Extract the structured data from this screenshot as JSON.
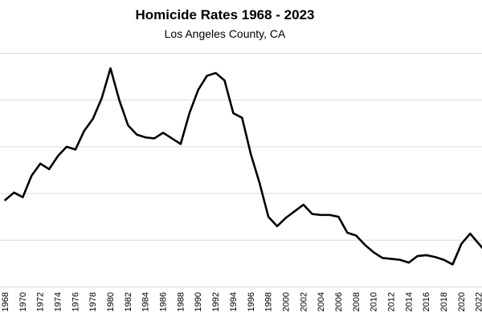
{
  "chart_data": {
    "type": "line",
    "title": "Homicide Rates 1968 - 2023",
    "subtitle": "Los Angeles County, CA",
    "xlabel": "",
    "ylabel": "",
    "grid": true,
    "xlim": [
      1968,
      2023
    ],
    "ylim": [
      0,
      25
    ],
    "y_gridlines": [
      5,
      10,
      15,
      20,
      25
    ],
    "x_tick_labels": [
      "1968",
      "1970",
      "1972",
      "1974",
      "1976",
      "1978",
      "1980",
      "1982",
      "1984",
      "1986",
      "1988",
      "1990",
      "1992",
      "1994",
      "1996",
      "1998",
      "2000",
      "2002",
      "2004",
      "2006",
      "2008",
      "2010",
      "2012",
      "2014",
      "2016",
      "2018",
      "2020",
      "2022"
    ],
    "x": [
      1968,
      1969,
      1970,
      1971,
      1972,
      1973,
      1974,
      1975,
      1976,
      1977,
      1978,
      1979,
      1980,
      1981,
      1982,
      1983,
      1984,
      1985,
      1986,
      1987,
      1988,
      1989,
      1990,
      1991,
      1992,
      1993,
      1994,
      1995,
      1996,
      1997,
      1998,
      1999,
      2000,
      2001,
      2002,
      2003,
      2004,
      2005,
      2006,
      2007,
      2008,
      2009,
      2010,
      2011,
      2012,
      2013,
      2014,
      2015,
      2016,
      2017,
      2018,
      2019,
      2020,
      2021,
      2022,
      2023
    ],
    "y": [
      9.3,
      10.1,
      9.6,
      11.9,
      13.2,
      12.6,
      14.0,
      15.0,
      14.7,
      16.7,
      18.0,
      20.2,
      23.4,
      20.0,
      17.3,
      16.3,
      16.0,
      15.9,
      16.5,
      15.9,
      15.3,
      18.6,
      21.1,
      22.6,
      22.9,
      22.1,
      18.6,
      18.1,
      14.2,
      11.1,
      7.5,
      6.5,
      7.4,
      8.1,
      8.8,
      7.8,
      7.7,
      7.7,
      7.5,
      5.8,
      5.5,
      4.5,
      3.7,
      3.1,
      3.0,
      2.9,
      2.6,
      3.3,
      3.4,
      3.2,
      2.9,
      2.4,
      4.6,
      5.7,
      4.6,
      3.5
    ]
  }
}
